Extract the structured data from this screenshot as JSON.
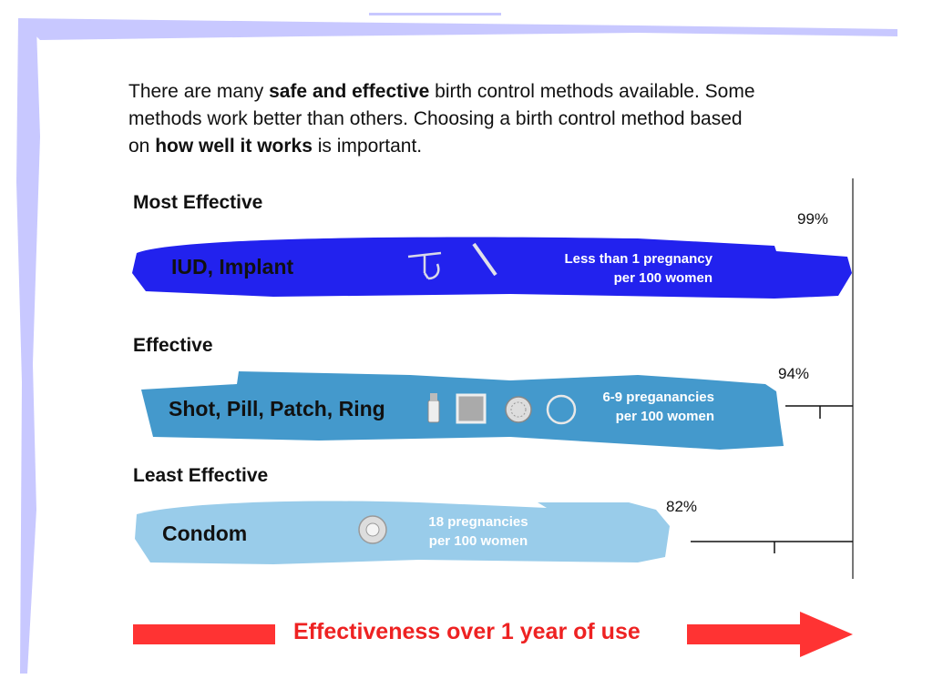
{
  "intro": {
    "line1_pre": "There are many ",
    "line1_bold": "safe and effective",
    "line1_post": " birth control methods available. Some",
    "line2": "methods work better than others. Choosing a birth control method based",
    "line3_pre": "on ",
    "line3_bold": "how well it works",
    "line3_post": " is important."
  },
  "chart_data": {
    "type": "bar",
    "orientation": "horizontal",
    "title": "",
    "xlabel": "Effectiveness over 1 year of use",
    "ylabel": "",
    "categories": [
      "Most Effective",
      "Effective",
      "Least Effective"
    ],
    "series": [
      {
        "values": [
          99,
          94,
          82
        ],
        "value_labels": [
          "99%",
          "94%",
          "82%"
        ]
      }
    ],
    "methods": [
      "IUD, Implant",
      "Shot, Pill, Patch, Ring",
      "Condom"
    ],
    "rates": [
      [
        "Less than 1 pregnancy",
        "per 100 women"
      ],
      [
        "6-9 preganancies",
        "per 100 women"
      ],
      [
        "18 pregnancies",
        "per 100 women"
      ]
    ],
    "colors": [
      "#2222ee",
      "#4499cc",
      "#99ccea"
    ],
    "grid": false,
    "legend": "none"
  },
  "icons": [
    "iud-icon",
    "implant-icon",
    "shot-vial-icon",
    "patch-icon",
    "pill-pack-icon",
    "ring-icon",
    "condom-icon"
  ],
  "colors": {
    "frame": "#c8c8ff",
    "arrow": "#ff3333",
    "footer_text": "#ee2222"
  }
}
